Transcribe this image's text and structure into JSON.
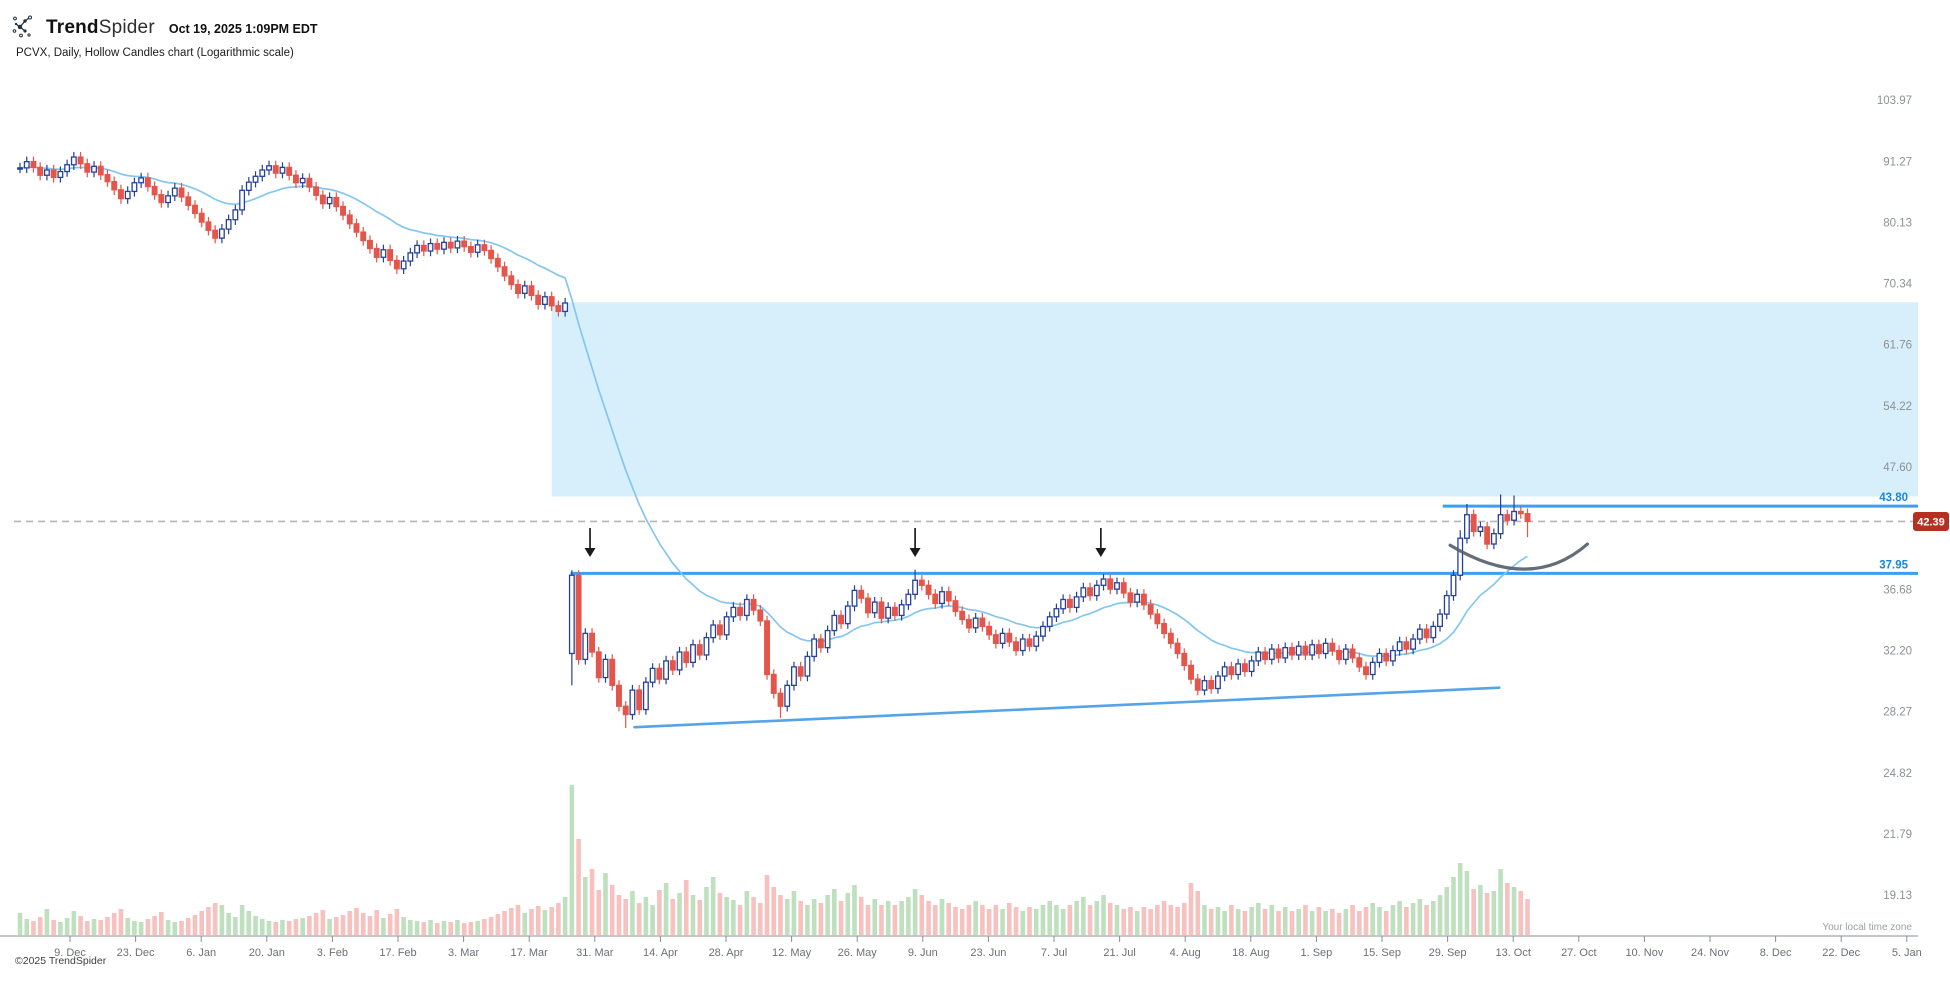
{
  "header": {
    "brand_bold": "Trend",
    "brand_light": "Spider",
    "timestamp": "Oct 19, 2025 1:09PM EDT",
    "subtitle": "PCVX, Daily, Hollow Candles chart (Logarithmic scale)"
  },
  "footer": {
    "copyright": "©2025 TrendSpider",
    "timezone_note": "Your local time zone"
  },
  "colors": {
    "candle_up": "#24429b",
    "candle_down": "#e4554a",
    "ma_line": "#85c6ee",
    "level_line": "#3e9ef1",
    "trendline": "#55a3e8",
    "zone_fill": "#d7eefb",
    "dashed_line": "#b6b6b6",
    "badge_bg": "#b43122",
    "badge_text": "#ffffff",
    "blue_label": "#1486e8",
    "vol_up": "#bfe0bf",
    "vol_down": "#f6c1bf",
    "axis_text": "#8c9196",
    "date_text": "#6c7075",
    "arc": "#57616e",
    "arrow": "#1b1b1b"
  },
  "levels_ui": {
    "resistance_label": "43.80",
    "last_price_label": "42.39",
    "support_label": "37.95"
  },
  "chart_data": {
    "type": "candlestick",
    "symbol": "PCVX",
    "timeframe": "Daily",
    "scale": "logarithmic",
    "title": "PCVX, Daily, Hollow Candles chart (Logarithmic scale)",
    "y_axis_ticks": [
      103.97,
      91.27,
      80.13,
      70.34,
      61.76,
      54.22,
      47.6,
      36.68,
      32.2,
      28.27,
      24.82,
      21.79,
      19.13
    ],
    "x_axis_ticks": [
      "9. Dec",
      "23. Dec",
      "6. Jan",
      "20. Jan",
      "3. Feb",
      "17. Feb",
      "3. Mar",
      "17. Mar",
      "31. Mar",
      "14. Apr",
      "28. Apr",
      "12. May",
      "26. May",
      "9. Jun",
      "23. Jun",
      "7. Jul",
      "21. Jul",
      "4. Aug",
      "18. Aug",
      "1. Sep",
      "15. Sep",
      "29. Sep",
      "13. Oct",
      "27. Oct",
      "10. Nov",
      "24. Nov",
      "8. Dec",
      "22. Dec",
      "5. Jan"
    ],
    "levels": {
      "resistance": 43.8,
      "last_price": 42.39,
      "support": 37.95
    },
    "zone": {
      "start_index": 79,
      "price_top": 67.6,
      "price_bottom": 44.7
    },
    "trendline": {
      "start": {
        "index": 91.3,
        "price": 27.35
      },
      "end": {
        "index": 219.8,
        "price": 29.75
      }
    },
    "resistance_start_index": 211.4,
    "support_start_index": 81.8,
    "ma": {
      "type": "EMA",
      "period": 20
    },
    "closes": [
      90.0,
      91.2,
      90.1,
      88.6,
      89.6,
      88.2,
      89.3,
      90.6,
      92.1,
      90.8,
      89.2,
      90.3,
      88.7,
      87.4,
      85.9,
      84.3,
      85.6,
      87.2,
      88.1,
      86.5,
      85.0,
      83.6,
      84.8,
      86.2,
      84.6,
      83.1,
      81.7,
      80.2,
      78.8,
      77.5,
      79.0,
      80.6,
      82.3,
      85.8,
      87.3,
      88.4,
      89.6,
      90.4,
      89.0,
      90.1,
      88.6,
      87.2,
      88.0,
      86.4,
      84.9,
      83.4,
      84.5,
      82.9,
      81.4,
      79.9,
      78.5,
      77.1,
      75.8,
      74.4,
      75.6,
      73.9,
      72.6,
      73.8,
      75.1,
      76.3,
      75.4,
      76.6,
      75.7,
      76.8,
      75.9,
      77.0,
      76.1,
      75.2,
      76.4,
      75.5,
      74.2,
      72.9,
      71.5,
      70.2,
      68.9,
      70.0,
      68.6,
      67.3,
      68.4,
      67.1,
      66.3,
      67.5,
      37.8,
      31.6,
      33.4,
      32.1,
      30.4,
      31.6,
      29.9,
      28.6,
      28.1,
      29.6,
      28.4,
      30.1,
      31.0,
      30.3,
      31.5,
      30.9,
      32.1,
      31.4,
      32.6,
      31.9,
      33.1,
      34.0,
      33.3,
      34.6,
      35.3,
      34.7,
      35.9,
      35.1,
      34.3,
      30.6,
      29.4,
      28.6,
      29.9,
      31.1,
      30.5,
      31.8,
      33.0,
      32.4,
      33.6,
      34.7,
      34.1,
      35.4,
      36.6,
      36.0,
      34.9,
      35.7,
      34.5,
      35.3,
      34.7,
      35.5,
      36.3,
      37.4,
      37.0,
      36.3,
      35.6,
      36.5,
      35.8,
      35.0,
      34.4,
      33.8,
      34.5,
      33.9,
      33.3,
      32.7,
      33.4,
      32.8,
      32.2,
      33.0,
      32.5,
      33.2,
      33.9,
      34.6,
      35.2,
      35.9,
      35.3,
      36.1,
      36.8,
      36.2,
      37.0,
      37.5,
      36.7,
      37.2,
      36.4,
      35.7,
      36.3,
      35.5,
      34.8,
      34.1,
      33.4,
      32.7,
      32.0,
      31.2,
      30.3,
      29.6,
      30.2,
      29.7,
      30.5,
      31.1,
      30.6,
      31.3,
      30.8,
      31.5,
      32.1,
      31.6,
      32.3,
      31.7,
      32.4,
      31.9,
      32.5,
      31.9,
      32.6,
      32.0,
      32.7,
      32.2,
      31.6,
      32.3,
      31.7,
      31.1,
      30.6,
      31.4,
      32.0,
      31.5,
      32.2,
      32.8,
      32.3,
      33.0,
      33.7,
      33.1,
      33.9,
      34.8,
      36.2,
      37.8,
      40.9,
      43.0,
      41.5,
      41.9,
      40.4,
      41.3,
      43.0,
      42.5,
      43.3,
      43.1,
      42.4
    ],
    "volumes": [
      22,
      16,
      14,
      18,
      26,
      15,
      13,
      17,
      24,
      19,
      14,
      16,
      15,
      18,
      22,
      26,
      17,
      14,
      13,
      16,
      19,
      23,
      15,
      13,
      14,
      17,
      20,
      24,
      28,
      32,
      30,
      22,
      18,
      30,
      24,
      19,
      16,
      14,
      13,
      15,
      14,
      16,
      17,
      19,
      22,
      25,
      16,
      18,
      20,
      24,
      27,
      22,
      19,
      25,
      17,
      21,
      26,
      18,
      15,
      14,
      13,
      15,
      12,
      14,
      13,
      15,
      12,
      13,
      14,
      16,
      18,
      21,
      24,
      27,
      30,
      22,
      26,
      29,
      25,
      28,
      32,
      38,
      150,
      96,
      58,
      66,
      45,
      62,
      50,
      40,
      36,
      44,
      32,
      38,
      30,
      45,
      52,
      36,
      42,
      55,
      40,
      35,
      48,
      58,
      42,
      38,
      35,
      30,
      44,
      38,
      32,
      60,
      48,
      40,
      36,
      44,
      34,
      30,
      36,
      32,
      40,
      46,
      34,
      42,
      50,
      38,
      30,
      36,
      30,
      34,
      30,
      34,
      38,
      46,
      40,
      34,
      30,
      36,
      32,
      28,
      26,
      30,
      34,
      30,
      26,
      30,
      26,
      32,
      28,
      24,
      28,
      26,
      30,
      34,
      30,
      26,
      30,
      34,
      38,
      30,
      34,
      40,
      32,
      30,
      26,
      28,
      24,
      28,
      26,
      30,
      34,
      30,
      28,
      32,
      52,
      44,
      30,
      26,
      28,
      24,
      30,
      26,
      24,
      28,
      32,
      26,
      30,
      24,
      28,
      24,
      26,
      30,
      24,
      28,
      24,
      26,
      22,
      26,
      30,
      24,
      28,
      32,
      28,
      24,
      30,
      34,
      28,
      32,
      36,
      30,
      34,
      40,
      48,
      58,
      72,
      64,
      46,
      50,
      42,
      44,
      66,
      52,
      48,
      44,
      36
    ],
    "open_overrides": {
      "82": 32.0
    },
    "wick_overrides": {
      "82": {
        "low": 29.9
      },
      "90": {
        "low": 27.3
      },
      "113": {
        "low": 27.9
      },
      "133": {
        "high": 38.25
      },
      "161": {
        "high": 37.9
      },
      "214": {
        "high": 41.6
      },
      "215": {
        "high": 44.0
      },
      "220": {
        "high": 44.9
      },
      "222": {
        "high": 44.8
      },
      "224": {
        "low": 41.0
      }
    }
  },
  "annotations": {
    "arrows": [
      {
        "index": 84.7,
        "tail_price": 41.8,
        "tip_price": 39.3
      },
      {
        "index": 133.0,
        "tail_price": 41.8,
        "tip_price": 39.3
      },
      {
        "index": 160.6,
        "tail_price": 41.8,
        "tip_price": 39.3
      }
    ],
    "arc": {
      "start": {
        "index": 212.5,
        "price": 40.3
      },
      "mid": {
        "index": 223.6,
        "price": 38.3
      },
      "end": {
        "index": 232.9,
        "price": 40.4
      }
    }
  }
}
